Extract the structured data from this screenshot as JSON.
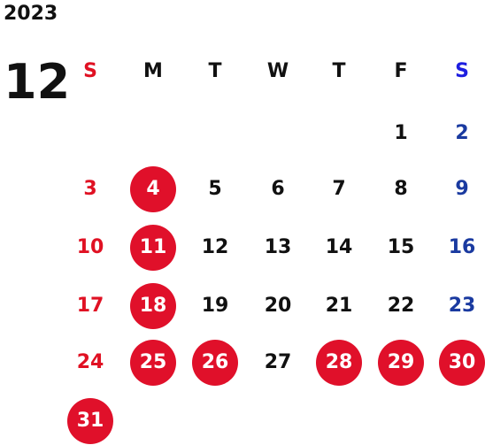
{
  "year": "2023",
  "month": "12",
  "colors": {
    "sunday": "#e01123",
    "saturday": "#1a3aa0",
    "weekday": "#111111",
    "holiday_circle": "#e0102a",
    "saturday_header": "#1e1ee0"
  },
  "weekdays": [
    "S",
    "M",
    "T",
    "W",
    "T",
    "F",
    "S"
  ],
  "first_weekday": 5,
  "weeks": [
    [
      "",
      "",
      "",
      "",
      "",
      "1",
      "2"
    ],
    [
      "3",
      "4",
      "5",
      "6",
      "7",
      "8",
      "9"
    ],
    [
      "10",
      "11",
      "12",
      "13",
      "14",
      "15",
      "16"
    ],
    [
      "17",
      "18",
      "19",
      "20",
      "21",
      "22",
      "23"
    ],
    [
      "24",
      "25",
      "26",
      "27",
      "28",
      "29",
      "30"
    ],
    [
      "31",
      "",
      "",
      "",
      "",
      "",
      ""
    ]
  ],
  "circled_days": [
    "4",
    "11",
    "18",
    "25",
    "26",
    "28",
    "29",
    "30",
    "31"
  ]
}
